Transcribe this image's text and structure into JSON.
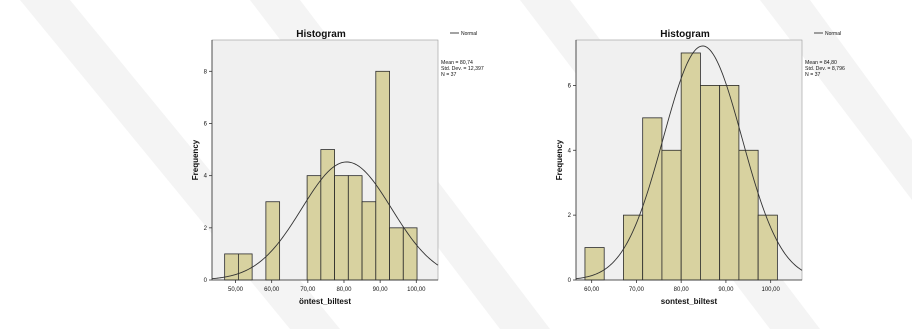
{
  "chart_data": [
    {
      "type": "bar",
      "title": "Histogram",
      "xlabel": "öntest_biltest",
      "ylabel": "Frequency",
      "legend": "Normal",
      "stats": [
        "Mean = 80,74",
        "Std. Dev. = 12,397",
        "N = 37"
      ],
      "mean": 80.74,
      "std": 12.397,
      "n": 37,
      "bin_width": 3.8,
      "bins": [
        {
          "start": 47.0,
          "count": 1
        },
        {
          "start": 50.8,
          "count": 1
        },
        {
          "start": 54.6,
          "count": 0
        },
        {
          "start": 58.4,
          "count": 3
        },
        {
          "start": 62.2,
          "count": 0
        },
        {
          "start": 66.0,
          "count": 0
        },
        {
          "start": 69.8,
          "count": 4
        },
        {
          "start": 73.6,
          "count": 5
        },
        {
          "start": 77.4,
          "count": 4
        },
        {
          "start": 81.2,
          "count": 4
        },
        {
          "start": 85.0,
          "count": 3
        },
        {
          "start": 88.8,
          "count": 8
        },
        {
          "start": 92.6,
          "count": 2
        },
        {
          "start": 96.4,
          "count": 2
        }
      ],
      "xlim": [
        43.5,
        106
      ],
      "ylim": [
        0,
        9.2
      ],
      "x_ticks": [
        50,
        60,
        70,
        80,
        90,
        100
      ],
      "x_tick_labels": [
        "50,00",
        "60,00",
        "70,00",
        "80,00",
        "90,00",
        "100,00"
      ],
      "y_ticks": [
        0,
        2,
        4,
        6,
        8
      ],
      "y_tick_labels": [
        "0",
        "2",
        "4",
        "6",
        "8"
      ],
      "legend_position": "top-right",
      "grid": false
    },
    {
      "type": "bar",
      "title": "Histogram",
      "xlabel": "sontest_biltest",
      "ylabel": "Frequency",
      "legend": "Normal",
      "stats": [
        "Mean = 84,80",
        "Std. Dev. = 8,796",
        "N = 37"
      ],
      "mean": 84.8,
      "std": 8.796,
      "n": 37,
      "bin_width": 4.3,
      "bins": [
        {
          "start": 58.5,
          "count": 1
        },
        {
          "start": 62.8,
          "count": 0
        },
        {
          "start": 67.1,
          "count": 2
        },
        {
          "start": 71.4,
          "count": 5
        },
        {
          "start": 75.7,
          "count": 4
        },
        {
          "start": 80.0,
          "count": 7
        },
        {
          "start": 84.3,
          "count": 6
        },
        {
          "start": 88.6,
          "count": 6
        },
        {
          "start": 92.9,
          "count": 4
        },
        {
          "start": 97.2,
          "count": 2
        }
      ],
      "xlim": [
        56.5,
        107
      ],
      "ylim": [
        0,
        7.4
      ],
      "x_ticks": [
        60,
        70,
        80,
        90,
        100
      ],
      "x_tick_labels": [
        "60,00",
        "70,00",
        "80,00",
        "90,00",
        "100,00"
      ],
      "y_ticks": [
        0,
        2,
        4,
        6
      ],
      "y_tick_labels": [
        "0",
        "2",
        "4",
        "6"
      ],
      "legend_position": "top-right",
      "grid": false
    }
  ],
  "colors": {
    "plot_bg": "#f0f0f0",
    "bar_fill": "#d8d2a0",
    "bar_stroke": "#2a2a2a",
    "curve": "#333333",
    "axis": "#333333",
    "text": "#111111"
  }
}
